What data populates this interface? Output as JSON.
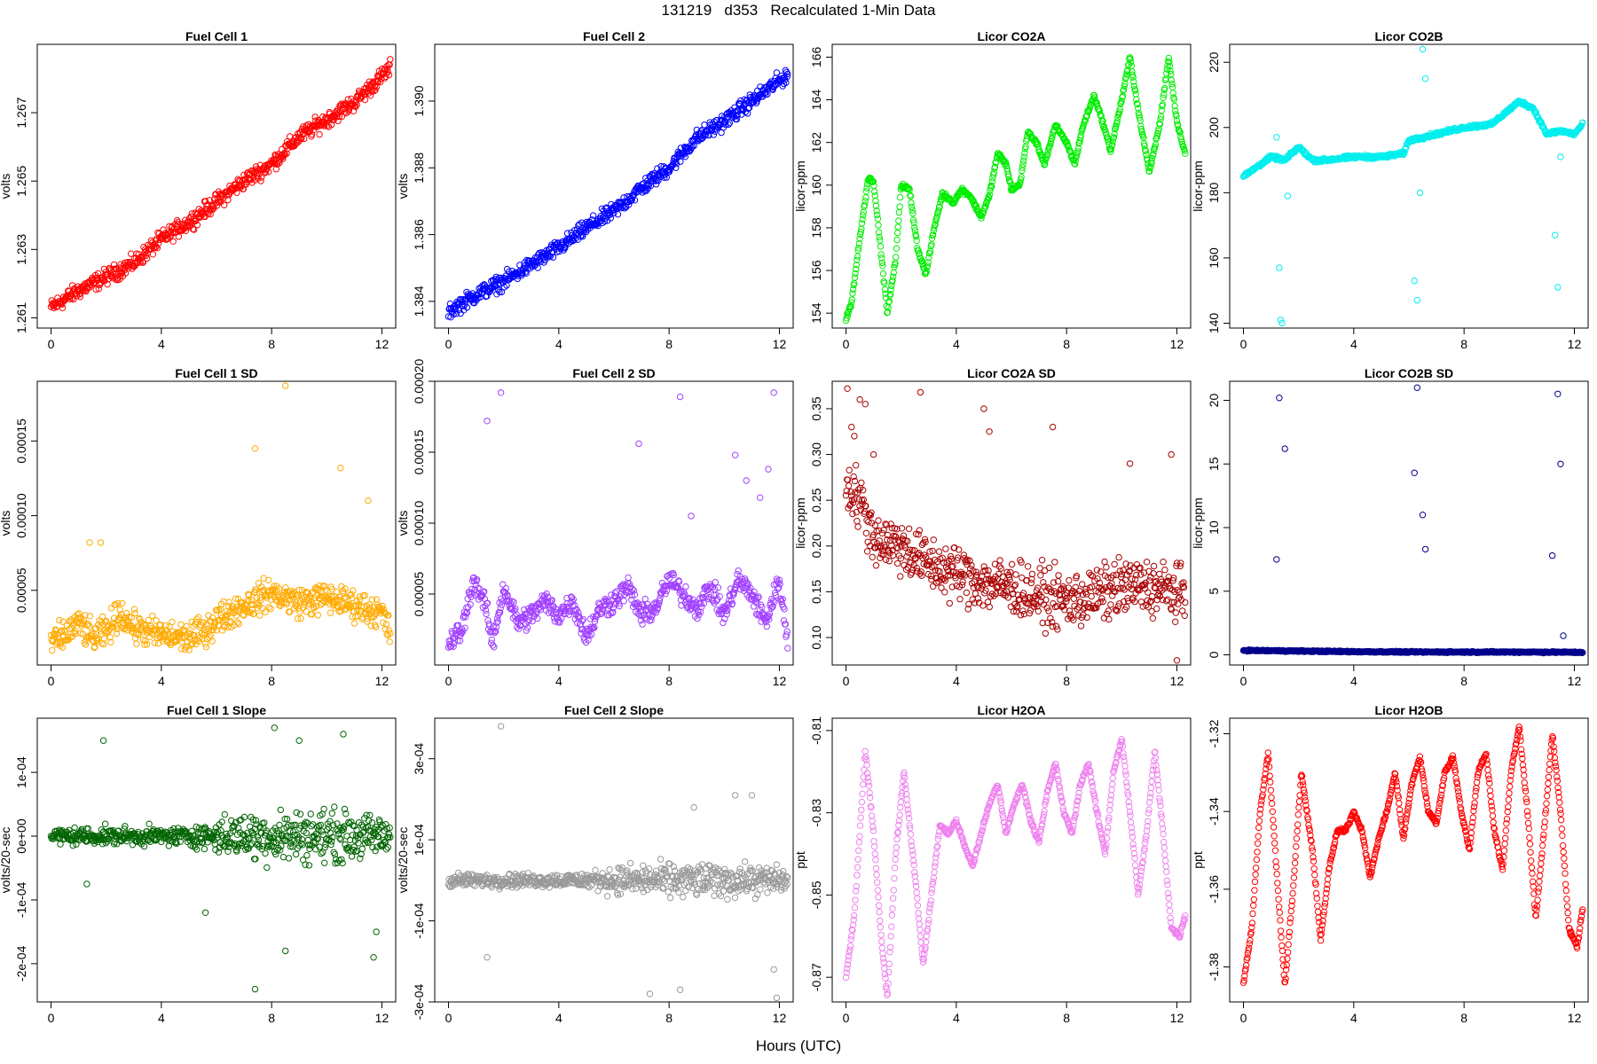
{
  "title": "131219   d353   Recalculated 1-Min Data",
  "x_axis_label": "Hours (UTC)",
  "chart_data": [
    {
      "type": "scatter",
      "title": "Fuel Cell 1",
      "ylabel": "volts",
      "color": "#ff0000",
      "xlim": [
        -0.5,
        12.5
      ],
      "ylim": [
        1.2607,
        1.269
      ],
      "xticks": [
        0,
        4,
        8,
        12
      ],
      "yticks": [
        1.261,
        1.263,
        1.265,
        1.267
      ],
      "ytick_labels": [
        "1.261",
        "1.263",
        "1.265",
        "1.267"
      ],
      "series": {
        "x": [
          0,
          1,
          2,
          3,
          4,
          5,
          6,
          7,
          8,
          9,
          10,
          11,
          12.3
        ],
        "y": [
          1.2613,
          1.2618,
          1.2622,
          1.2626,
          1.2633,
          1.2638,
          1.2644,
          1.265,
          1.2655,
          1.2663,
          1.2668,
          1.2673,
          1.2683
        ],
        "spread": 0.00035
      }
    },
    {
      "type": "scatter",
      "title": "Fuel Cell 2",
      "ylabel": "volts",
      "color": "#0000ff",
      "xlim": [
        -0.5,
        12.5
      ],
      "ylim": [
        1.3832,
        1.3917
      ],
      "xticks": [
        0,
        4,
        8,
        12
      ],
      "yticks": [
        1.384,
        1.386,
        1.388,
        1.39
      ],
      "ytick_labels": [
        "1.384",
        "1.386",
        "1.388",
        "1.390"
      ],
      "series": {
        "x": [
          0,
          1,
          2,
          3,
          4,
          5,
          6,
          7,
          8,
          9,
          10,
          11,
          12.3
        ],
        "y": [
          1.3837,
          1.3842,
          1.3846,
          1.3851,
          1.3856,
          1.3862,
          1.3867,
          1.3874,
          1.388,
          1.3889,
          1.3894,
          1.39,
          1.3908
        ],
        "spread": 0.00035
      }
    },
    {
      "type": "scatter",
      "title": "Licor CO2A",
      "ylabel": "licor-ppm",
      "color": "#00ee00",
      "xlim": [
        -0.5,
        12.5
      ],
      "ylim": [
        153.3,
        166.6
      ],
      "xticks": [
        0,
        4,
        8,
        12
      ],
      "yticks": [
        154,
        156,
        158,
        160,
        162,
        164,
        166
      ],
      "ytick_labels": [
        "154",
        "156",
        "158",
        "160",
        "162",
        "164",
        "166"
      ],
      "series": {
        "x": [
          0,
          0.2,
          0.5,
          0.8,
          1.0,
          1.3,
          1.5,
          1.8,
          2.0,
          2.3,
          2.6,
          2.9,
          3.2,
          3.5,
          3.9,
          4.2,
          4.5,
          4.9,
          5.2,
          5.5,
          5.8,
          6.0,
          6.3,
          6.6,
          6.9,
          7.2,
          7.6,
          8.0,
          8.3,
          8.6,
          9.0,
          9.3,
          9.6,
          10.0,
          10.3,
          10.6,
          11.0,
          11.4,
          11.7,
          12.0,
          12.3
        ],
        "y": [
          153.7,
          154.5,
          157.5,
          160.3,
          160.2,
          156.5,
          154.0,
          156.5,
          160.0,
          159.8,
          157.0,
          155.8,
          158.0,
          159.6,
          159.2,
          159.8,
          159.5,
          158.5,
          159.5,
          161.5,
          161.0,
          159.8,
          160.0,
          162.5,
          162.0,
          161.0,
          162.8,
          162.0,
          161.0,
          162.8,
          164.2,
          163.0,
          161.6,
          164.0,
          166.0,
          163.5,
          160.6,
          163.0,
          166.0,
          163.0,
          161.5
        ],
        "spread": 0.15
      }
    },
    {
      "type": "scatter",
      "title": "Licor CO2B",
      "ylabel": "licor-ppm",
      "color": "#00eeee",
      "xlim": [
        -0.5,
        12.5
      ],
      "ylim": [
        138.5,
        225.5
      ],
      "xticks": [
        0,
        4,
        8,
        12
      ],
      "yticks": [
        140,
        160,
        180,
        200,
        220
      ],
      "ytick_labels": [
        "140",
        "160",
        "180",
        "200",
        "220"
      ],
      "series": {
        "x": [
          0,
          1,
          1.5,
          2,
          2.5,
          3,
          4,
          5,
          5.8,
          6,
          7,
          8,
          9,
          10,
          10.5,
          11,
          11.5,
          12,
          12.3
        ],
        "y": [
          185,
          191,
          190,
          194,
          190,
          190,
          191,
          191,
          192,
          196,
          198,
          200,
          201,
          208,
          206,
          198,
          199,
          198,
          201
        ],
        "spread": 0.8
      },
      "outliers": {
        "x": [
          1.2,
          1.3,
          1.35,
          1.4,
          1.5,
          1.6,
          6.2,
          6.3,
          6.4,
          6.5,
          6.6,
          11.3,
          11.4,
          11.5
        ],
        "y": [
          197,
          157,
          141,
          140,
          190,
          179,
          153,
          147,
          180,
          224,
          215,
          167,
          151,
          191
        ]
      }
    },
    {
      "type": "scatter",
      "title": "Fuel Cell 1 SD",
      "ylabel": "volts",
      "color": "#ffaa00",
      "xlim": [
        -0.5,
        12.5
      ],
      "ylim": [
        0.0,
        0.00019
      ],
      "xticks": [
        0,
        4,
        8,
        12
      ],
      "yticks": [
        5e-05,
        0.0001,
        0.00015
      ],
      "ytick_labels": [
        "0.00005",
        "0.00010",
        "0.00015"
      ],
      "series": {
        "x": [
          0,
          0.5,
          1,
          1.5,
          2,
          2.5,
          3,
          4,
          5,
          5.5,
          6,
          7,
          8,
          9,
          10,
          11,
          12,
          12.3
        ],
        "y": [
          1.5e-05,
          2e-05,
          2.8e-05,
          1.8e-05,
          2.2e-05,
          3.5e-05,
          2.5e-05,
          2e-05,
          1.8e-05,
          2.2e-05,
          3e-05,
          4e-05,
          4.8e-05,
          4.2e-05,
          4.5e-05,
          4e-05,
          3.5e-05,
          2e-05
        ],
        "spread": 1.5e-05
      },
      "outliers": {
        "x": [
          1.4,
          1.8,
          7.4,
          8.5,
          10.5,
          11.5
        ],
        "y": [
          8.2e-05,
          8.2e-05,
          0.000145,
          0.000187,
          0.000132,
          0.00011
        ]
      }
    },
    {
      "type": "scatter",
      "title": "Fuel Cell 2 SD",
      "ylabel": "volts",
      "color": "#a040ff",
      "xlim": [
        -0.5,
        12.5
      ],
      "ylim": [
        0.0,
        0.0002
      ],
      "xticks": [
        0,
        4,
        8,
        12
      ],
      "yticks": [
        5e-05,
        0.0001,
        0.00015,
        0.0002
      ],
      "ytick_labels": [
        "0.00005",
        "0.00010",
        "0.00015",
        "0.00020"
      ],
      "series": {
        "x": [
          0,
          0.5,
          0.9,
          1.3,
          1.6,
          2,
          2.5,
          3,
          3.5,
          4,
          4.5,
          5,
          5.5,
          6,
          6.5,
          7,
          7.5,
          8,
          8.5,
          9,
          9.5,
          10,
          10.5,
          11,
          11.5,
          12,
          12.3
        ],
        "y": [
          1.5e-05,
          2.5e-05,
          6e-05,
          4.5e-05,
          1.5e-05,
          5.5e-05,
          3e-05,
          3.5e-05,
          4.5e-05,
          3.5e-05,
          4.5e-05,
          2e-05,
          4e-05,
          4.5e-05,
          5.5e-05,
          3.5e-05,
          4e-05,
          6e-05,
          5e-05,
          4e-05,
          5.5e-05,
          3.5e-05,
          6e-05,
          5e-05,
          3e-05,
          6e-05,
          1.5e-05
        ],
        "spread": 1.2e-05
      },
      "outliers": {
        "x": [
          1.4,
          1.9,
          6.9,
          8.4,
          8.8,
          10.4,
          10.8,
          11.3,
          11.6,
          11.8
        ],
        "y": [
          0.000172,
          0.000192,
          0.000156,
          0.000189,
          0.000105,
          0.000148,
          0.00013,
          0.000118,
          0.000138,
          0.000192
        ]
      }
    },
    {
      "type": "scatter",
      "title": "Licor CO2A SD",
      "ylabel": "licor-ppm",
      "color": "#aa0000",
      "xlim": [
        -0.5,
        12.5
      ],
      "ylim": [
        0.07,
        0.38
      ],
      "xticks": [
        0,
        4,
        8,
        12
      ],
      "yticks": [
        0.1,
        0.15,
        0.2,
        0.25,
        0.3,
        0.35
      ],
      "ytick_labels": [
        "0.10",
        "0.15",
        "0.20",
        "0.25",
        "0.30",
        "0.35"
      ],
      "series": {
        "x": [
          0,
          0.5,
          1,
          2,
          3,
          4,
          5,
          6,
          7,
          8,
          9,
          10,
          11,
          12,
          12.3
        ],
        "y": [
          0.27,
          0.25,
          0.21,
          0.2,
          0.18,
          0.17,
          0.16,
          0.155,
          0.145,
          0.14,
          0.145,
          0.155,
          0.155,
          0.15,
          0.14
        ],
        "spread": 0.045
      },
      "outliers": {
        "x": [
          0.05,
          0.2,
          0.3,
          0.5,
          0.7,
          1.0,
          2.7,
          5.0,
          5.2,
          7.5,
          10.3,
          11.8,
          12.0
        ],
        "y": [
          0.372,
          0.33,
          0.32,
          0.36,
          0.355,
          0.3,
          0.368,
          0.35,
          0.325,
          0.33,
          0.29,
          0.3,
          0.075
        ]
      }
    },
    {
      "type": "scatter",
      "title": "Licor CO2B SD",
      "ylabel": "licor-ppm",
      "color": "#00008b",
      "xlim": [
        -0.5,
        12.5
      ],
      "ylim": [
        -0.8,
        21.5
      ],
      "xticks": [
        0,
        4,
        8,
        12
      ],
      "yticks": [
        0,
        5,
        10,
        15,
        20
      ],
      "ytick_labels": [
        "0",
        "5",
        "10",
        "15",
        "20"
      ],
      "series": {
        "x": [
          0,
          2,
          4,
          6,
          8,
          10,
          12,
          12.3
        ],
        "y": [
          0.35,
          0.3,
          0.25,
          0.22,
          0.22,
          0.22,
          0.2,
          0.2
        ],
        "spread": 0.08
      },
      "outliers": {
        "x": [
          1.2,
          1.3,
          1.5,
          6.2,
          6.3,
          6.5,
          6.6,
          11.2,
          11.4,
          11.5,
          11.6
        ],
        "y": [
          7.5,
          20.2,
          16.2,
          14.3,
          21.0,
          11.0,
          8.3,
          7.8,
          20.5,
          15.0,
          1.5
        ]
      }
    },
    {
      "type": "scatter",
      "title": "Fuel Cell 1 Slope",
      "ylabel": "volts/20-sec",
      "color": "#006400",
      "xlim": [
        -0.5,
        12.5
      ],
      "ylim": [
        -0.00026,
        0.000185
      ],
      "xticks": [
        0,
        4,
        8,
        12
      ],
      "yticks": [
        -0.0002,
        -0.0001,
        0.0,
        0.0001
      ],
      "ytick_labels": [
        "-2e-04",
        "-1e-04",
        "0e+00",
        "1e-04"
      ],
      "series": {
        "x": [
          0,
          2,
          4,
          5.5,
          6,
          8,
          10,
          12,
          12.3
        ],
        "y": [
          0,
          0,
          0,
          0,
          0,
          0,
          0,
          0,
          0
        ],
        "spread": [
          2e-05,
          2e-05,
          2e-05,
          2.5e-05,
          4e-05,
          6e-05,
          6e-05,
          4.5e-05,
          4e-05
        ]
      },
      "outliers": {
        "x": [
          1.3,
          1.9,
          5.6,
          7.4,
          8.1,
          8.5,
          9.0,
          10.6,
          11.7,
          11.8
        ],
        "y": [
          -7.5e-05,
          0.00015,
          -0.00012,
          -0.00024,
          0.00017,
          -0.00018,
          0.00015,
          0.00016,
          -0.00019,
          -0.00015
        ]
      }
    },
    {
      "type": "scatter",
      "title": "Fuel Cell 2 Slope",
      "ylabel": "volts/20-sec",
      "color": "#999999",
      "xlim": [
        -0.5,
        12.5
      ],
      "ylim": [
        -0.0003,
        0.0004
      ],
      "xticks": [
        0,
        4,
        8,
        12
      ],
      "yticks": [
        -0.0003,
        -0.0001,
        0.0001,
        0.0003
      ],
      "ytick_labels": [
        "-3e-04",
        "-1e-04",
        "1e-04",
        "3e-04"
      ],
      "series": {
        "x": [
          0,
          2,
          4,
          5.5,
          6,
          8,
          10,
          12,
          12.3
        ],
        "y": [
          0,
          0,
          0,
          0,
          0,
          0,
          0,
          0,
          0
        ],
        "spread": [
          2.5e-05,
          2.5e-05,
          2.5e-05,
          3.5e-05,
          5e-05,
          6e-05,
          6e-05,
          5e-05,
          4.5e-05
        ]
      },
      "outliers": {
        "x": [
          1.4,
          1.9,
          7.3,
          8.4,
          8.9,
          10.4,
          11.0,
          11.8,
          11.9
        ],
        "y": [
          -0.00019,
          0.00038,
          -0.00028,
          -0.00027,
          0.00018,
          0.00021,
          0.00021,
          -0.00022,
          -0.00029
        ]
      }
    },
    {
      "type": "scatter",
      "title": "Licor H2OA",
      "ylabel": "ppt",
      "color": "#ee82ee",
      "xlim": [
        -0.5,
        12.5
      ],
      "ylim": [
        -0.876,
        -0.807
      ],
      "xticks": [
        0,
        4,
        8,
        12
      ],
      "yticks": [
        -0.87,
        -0.85,
        -0.83,
        -0.81
      ],
      "ytick_labels": [
        "-0.87",
        "-0.85",
        "-0.83",
        "-0.81"
      ],
      "series": {
        "x": [
          0,
          0.3,
          0.7,
          1.0,
          1.3,
          1.5,
          1.8,
          2.1,
          2.5,
          2.8,
          3.1,
          3.4,
          3.7,
          4.0,
          4.3,
          4.6,
          4.9,
          5.2,
          5.5,
          5.8,
          6.1,
          6.4,
          6.7,
          7.0,
          7.3,
          7.6,
          7.9,
          8.2,
          8.5,
          8.8,
          9.1,
          9.4,
          9.7,
          10.0,
          10.3,
          10.6,
          10.9,
          11.2,
          11.5,
          11.8,
          12.1,
          12.3
        ],
        "y": [
          -0.87,
          -0.855,
          -0.815,
          -0.835,
          -0.862,
          -0.875,
          -0.84,
          -0.82,
          -0.845,
          -0.867,
          -0.85,
          -0.833,
          -0.835,
          -0.832,
          -0.838,
          -0.843,
          -0.835,
          -0.828,
          -0.823,
          -0.835,
          -0.828,
          -0.823,
          -0.832,
          -0.837,
          -0.825,
          -0.818,
          -0.83,
          -0.835,
          -0.823,
          -0.818,
          -0.83,
          -0.84,
          -0.82,
          -0.812,
          -0.83,
          -0.85,
          -0.835,
          -0.815,
          -0.835,
          -0.858,
          -0.86,
          -0.855
        ],
        "spread": 0.0008
      }
    },
    {
      "type": "scatter",
      "title": "Licor H2OB",
      "ylabel": "ppt",
      "color": "#ff0000",
      "xlim": [
        -0.5,
        12.5
      ],
      "ylim": [
        -1.389,
        -1.316
      ],
      "xticks": [
        0,
        4,
        8,
        12
      ],
      "yticks": [
        -1.38,
        -1.36,
        -1.34,
        -1.32
      ],
      "ytick_labels": [
        "-1.38",
        "-1.36",
        "-1.34",
        "-1.32"
      ],
      "series": {
        "x": [
          0,
          0.3,
          0.6,
          0.9,
          1.2,
          1.5,
          1.8,
          2.1,
          2.5,
          2.8,
          3.1,
          3.4,
          3.7,
          4.0,
          4.3,
          4.6,
          4.9,
          5.2,
          5.5,
          5.8,
          6.1,
          6.4,
          6.7,
          7.0,
          7.3,
          7.6,
          7.9,
          8.2,
          8.5,
          8.8,
          9.1,
          9.4,
          9.7,
          10.0,
          10.3,
          10.6,
          10.9,
          11.2,
          11.5,
          11.8,
          12.1,
          12.3
        ],
        "y": [
          -1.384,
          -1.37,
          -1.34,
          -1.325,
          -1.355,
          -1.385,
          -1.36,
          -1.33,
          -1.35,
          -1.373,
          -1.355,
          -1.345,
          -1.345,
          -1.34,
          -1.345,
          -1.357,
          -1.347,
          -1.34,
          -1.33,
          -1.347,
          -1.333,
          -1.326,
          -1.34,
          -1.343,
          -1.33,
          -1.326,
          -1.34,
          -1.35,
          -1.33,
          -1.325,
          -1.345,
          -1.355,
          -1.33,
          -1.318,
          -1.34,
          -1.368,
          -1.345,
          -1.32,
          -1.34,
          -1.37,
          -1.375,
          -1.365
        ],
        "spread": 0.0008
      }
    }
  ]
}
